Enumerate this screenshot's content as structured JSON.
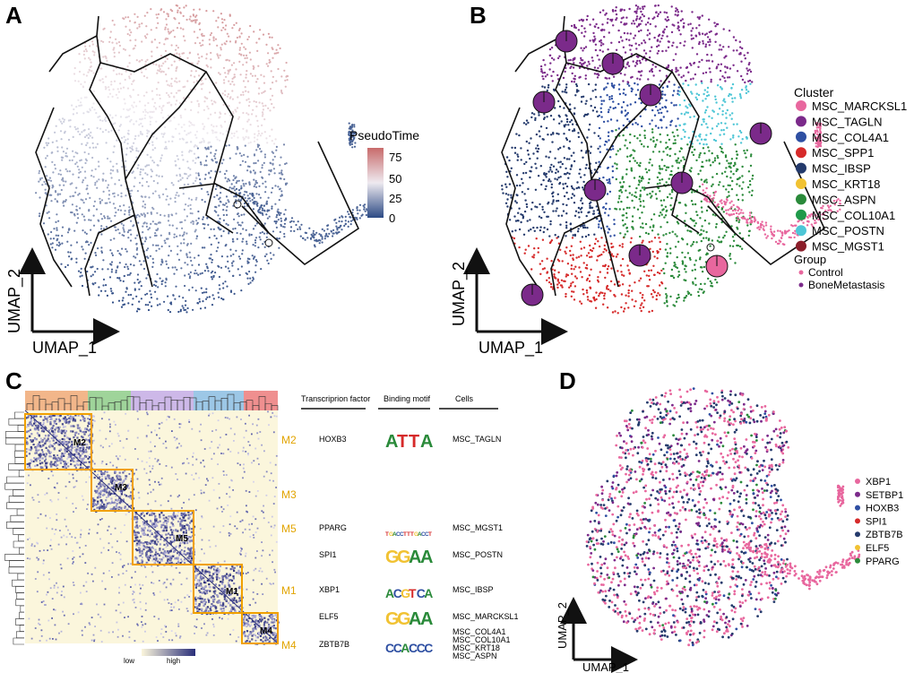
{
  "panels": {
    "A": {
      "letter": "A",
      "xaxis": "UMAP_1",
      "yaxis": "UMAP_2",
      "legend_title": "PseudoTime",
      "legend_ticks": [
        "75",
        "50",
        "25",
        "0"
      ],
      "colors": {
        "high": "#c86b6b",
        "mid": "#eeeaf0",
        "low": "#2c4a84"
      }
    },
    "B": {
      "letter": "B",
      "xaxis": "UMAP_1",
      "yaxis": "UMAP_2",
      "cluster_title": "Cluster",
      "clusters": [
        {
          "name": "MSC_MARCKSL1",
          "color": "#e8679e"
        },
        {
          "name": "MSC_TAGLN",
          "color": "#7b2a8a"
        },
        {
          "name": "MSC_COL4A1",
          "color": "#2e4fa2"
        },
        {
          "name": "MSC_SPP1",
          "color": "#d62a2a"
        },
        {
          "name": "MSC_IBSP",
          "color": "#243a6c"
        },
        {
          "name": "MSC_KRT18",
          "color": "#f1c232"
        },
        {
          "name": "MSC_ASPN",
          "color": "#2a8a3a"
        },
        {
          "name": "MSC_COL10A1",
          "color": "#1f9a4a"
        },
        {
          "name": "MSC_POSTN",
          "color": "#4ec6d6"
        },
        {
          "name": "MSC_MGST1",
          "color": "#8b1e2a"
        }
      ],
      "group_title": "Group",
      "groups": [
        {
          "name": "Control",
          "color": "#e8679e"
        },
        {
          "name": "BoneMetastasis",
          "color": "#7b2a8a"
        }
      ]
    },
    "C": {
      "letter": "C",
      "headers": {
        "tf": "Transcriprion factor",
        "motif": "Binding motif",
        "cells": "Cells"
      },
      "colorbar": {
        "low": "low",
        "high": "high"
      },
      "modules": [
        {
          "id": "M2",
          "label": "M2"
        },
        {
          "id": "M3",
          "label": "M3"
        },
        {
          "id": "M5",
          "label": "M5"
        },
        {
          "id": "M1",
          "label": "M1"
        },
        {
          "id": "M4",
          "label": "M4"
        }
      ],
      "rows": [
        {
          "module": "M2",
          "tf": "HOXB3",
          "motif": "ATTA",
          "cells": [
            "MSC_TAGLN"
          ]
        },
        {
          "module": "M3",
          "tf": "",
          "motif": "",
          "cells": []
        },
        {
          "module": "M5",
          "tf": "PPARG",
          "motif": "TGACCTTTGACCT",
          "cells": [
            "MSC_MGST1"
          ]
        },
        {
          "module": "",
          "tf": "SPI1",
          "motif": "GGAA",
          "cells": [
            "MSC_POSTN"
          ]
        },
        {
          "module": "M1",
          "tf": "XBP1",
          "motif": "ACGTCA",
          "cells": [
            "MSC_IBSP"
          ]
        },
        {
          "module": "",
          "tf": "ELF5",
          "motif": "GGAA",
          "cells": [
            "MSC_MARCKSL1"
          ]
        },
        {
          "module": "M4",
          "tf": "ZBTB7B",
          "motif": "CCACCC",
          "cells": [
            "MSC_COL4A1",
            "MSC_COL10A1",
            "MSC_KRT18",
            "MSC_ASPN"
          ]
        }
      ]
    },
    "D": {
      "letter": "D",
      "xaxis": "UMAP_1",
      "yaxis": "UMAP_2",
      "legend": [
        {
          "name": "XBP1",
          "color": "#e8679e"
        },
        {
          "name": "SETBP1",
          "color": "#7b2a8a"
        },
        {
          "name": "HOXB3",
          "color": "#2e4fa2"
        },
        {
          "name": "SPI1",
          "color": "#d62a2a"
        },
        {
          "name": "ZBTB7B",
          "color": "#243a6c"
        },
        {
          "name": "ELF5",
          "color": "#f1c232"
        },
        {
          "name": "PPARG",
          "color": "#2a8a3a"
        }
      ]
    }
  }
}
